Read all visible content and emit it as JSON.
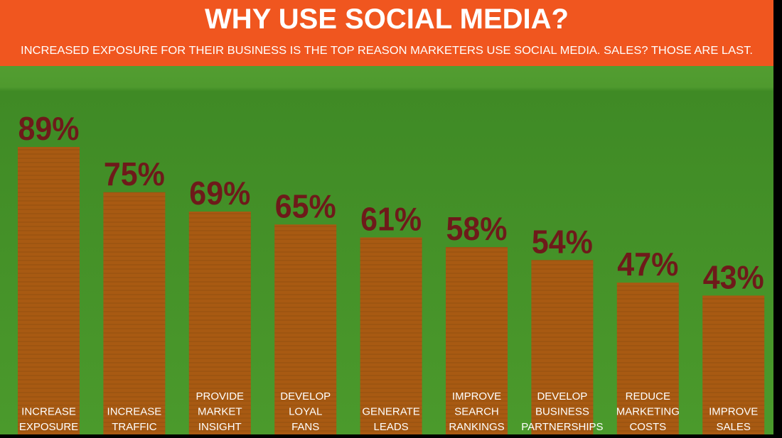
{
  "chart_data": {
    "type": "bar",
    "title": "WHY USE SOCIAL MEDIA?",
    "subtitle": "INCREASED EXPOSURE FOR THEIR BUSINESS IS THE TOP REASON MARKETERS USE SOCIAL MEDIA. SALES? THOSE ARE LAST.",
    "categories": [
      [
        "INCREASE",
        "EXPOSURE"
      ],
      [
        "INCREASE",
        "TRAFFIC"
      ],
      [
        "PROVIDE",
        "MARKET",
        "INSIGHT"
      ],
      [
        "DEVELOP",
        "LOYAL",
        "FANS"
      ],
      [
        "GENERATE",
        "LEADS"
      ],
      [
        "IMPROVE",
        "SEARCH",
        "RANKINGS"
      ],
      [
        "DEVELOP",
        "BUSINESS",
        "PARTNERSHIPS"
      ],
      [
        "REDUCE",
        "MARKETING",
        "COSTS"
      ],
      [
        "IMPROVE",
        "SALES"
      ]
    ],
    "values": [
      89,
      75,
      69,
      65,
      61,
      58,
      54,
      47,
      43
    ],
    "value_labels": [
      "89%",
      "75%",
      "69%",
      "65%",
      "61%",
      "58%",
      "54%",
      "47%",
      "43%"
    ],
    "color": "#a85a12"
  }
}
